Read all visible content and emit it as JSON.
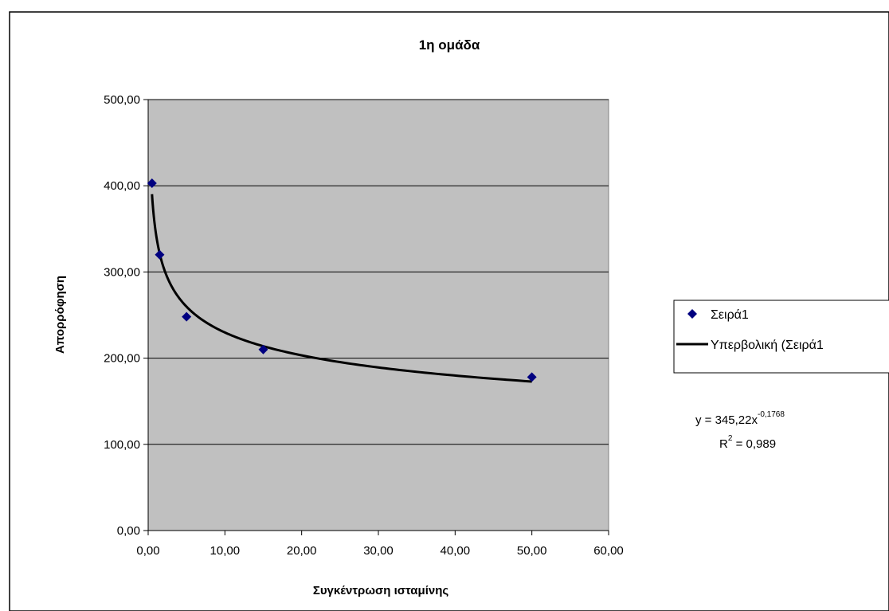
{
  "chart_data": {
    "type": "scatter",
    "title": "1η ομάδα",
    "xlabel": "Συγκέντρωση ισταμίνης",
    "ylabel": "Απορρόφηση",
    "xlim": [
      0,
      60
    ],
    "ylim": [
      0,
      500
    ],
    "x_ticks": [
      "0,00",
      "10,00",
      "20,00",
      "30,00",
      "40,00",
      "50,00",
      "60,00"
    ],
    "y_ticks": [
      "0,00",
      "100,00",
      "200,00",
      "300,00",
      "400,00",
      "500,00"
    ],
    "grid": "horizontal major gridlines",
    "plot_background": "#c0c0c0",
    "legend_position": "right",
    "series": [
      {
        "name": "Σειρά1",
        "marker": "diamond",
        "color": "#000080",
        "points": [
          {
            "x": 0.5,
            "y": 403
          },
          {
            "x": 1.5,
            "y": 320
          },
          {
            "x": 5,
            "y": 248
          },
          {
            "x": 15,
            "y": 210
          },
          {
            "x": 50,
            "y": 178
          }
        ]
      }
    ],
    "trendline": {
      "name": "Υπερβολική (Σειρά1",
      "model": "power",
      "coefficient": 345.22,
      "exponent": -0.1768,
      "x_range": [
        0.5,
        50
      ],
      "color": "#000000",
      "equation_prefix": "y = 345,22x",
      "equation_exponent": "-0,1768",
      "r2_prefix": "R",
      "r2_exponent": "2",
      "r2_suffix": " = 0,989"
    }
  }
}
